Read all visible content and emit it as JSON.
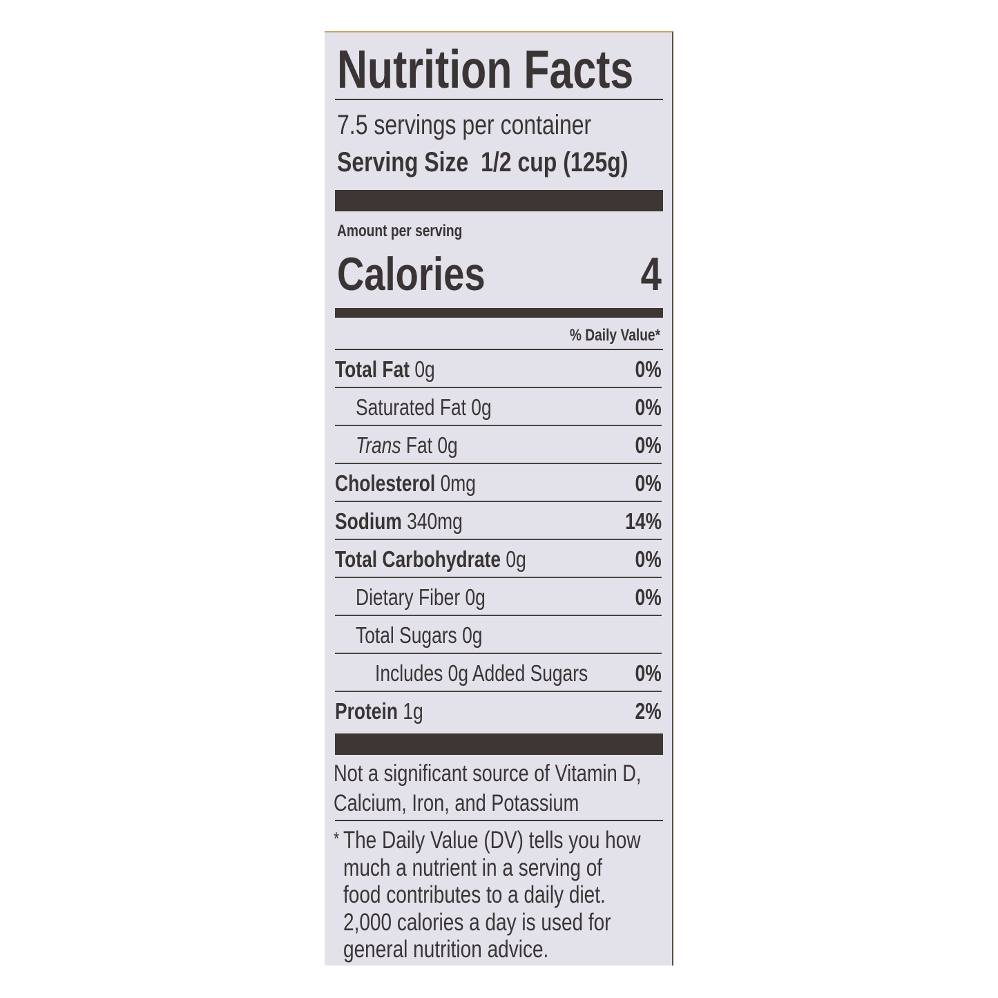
{
  "label": {
    "title": "Nutrition Facts",
    "servings_per_container": "7.5 servings per container",
    "serving_size_label": "Serving Size",
    "serving_size_value": "1/2 cup (125g)",
    "amount_per_serving": "Amount per serving",
    "calories_label": "Calories",
    "calories_value": "4",
    "daily_value_header": "% Daily Value*",
    "nutrients": [
      {
        "name": "Total Fat",
        "amount": "0g",
        "dv": "0%",
        "bold": true,
        "indent": 0
      },
      {
        "name": "Saturated Fat",
        "amount": "0g",
        "dv": "0%",
        "bold": false,
        "indent": 1
      },
      {
        "name": "Trans",
        "name_suffix": "Fat",
        "amount": "0g",
        "dv": "0%",
        "bold": false,
        "indent": 1,
        "italic_prefix": true
      },
      {
        "name": "Cholesterol",
        "amount": "0mg",
        "dv": "0%",
        "bold": true,
        "indent": 0
      },
      {
        "name": "Sodium",
        "amount": "340mg",
        "dv": "14%",
        "bold": true,
        "indent": 0
      },
      {
        "name": "Total Carbohydrate",
        "amount": "0g",
        "dv": "0%",
        "bold": true,
        "indent": 0
      },
      {
        "name": "Dietary Fiber",
        "amount": "0g",
        "dv": "0%",
        "bold": false,
        "indent": 1
      },
      {
        "name": "Total Sugars",
        "amount": "0g",
        "dv": "",
        "bold": false,
        "indent": 1
      },
      {
        "name": "Includes 0g Added Sugars",
        "amount": "",
        "dv": "0%",
        "bold": false,
        "indent": 2
      },
      {
        "name": "Protein",
        "amount": "1g",
        "dv": "2%",
        "bold": true,
        "indent": 0
      }
    ],
    "not_significant_line1": "Not a significant source of Vitamin D,",
    "not_significant_line2": "Calcium, Iron, and Potassium",
    "footnote_asterisk": "*",
    "footnote_lines": [
      "The Daily Value (DV) tells you how",
      "much a nutrient in a serving of",
      "food contributes to a daily diet.",
      "2,000 calories a day is used for",
      "general nutrition advice."
    ]
  },
  "colors": {
    "panel": "#e3e2eb",
    "ink": "#3a3434"
  }
}
